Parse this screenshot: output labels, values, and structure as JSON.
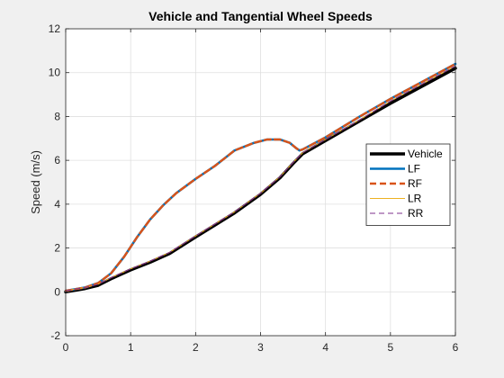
{
  "chart_data": {
    "type": "line",
    "title": "Vehicle and Tangential Wheel Speeds",
    "xlabel": "",
    "ylabel": "Speed (m/s)",
    "xlim": [
      0,
      6
    ],
    "ylim": [
      -2,
      12
    ],
    "xticks": [
      0,
      1,
      2,
      3,
      4,
      5,
      6
    ],
    "yticks": [
      -2,
      0,
      2,
      4,
      6,
      8,
      10,
      12
    ],
    "grid": true,
    "legend_position": "right",
    "series": [
      {
        "name": "Vehicle",
        "color": "#000000",
        "style": "solid",
        "x": [
          0,
          0.3,
          0.5,
          0.7,
          1.0,
          1.3,
          1.6,
          2.0,
          2.3,
          2.6,
          3.0,
          3.3,
          3.5,
          3.65,
          4.0,
          4.5,
          5.0,
          5.5,
          6.0
        ],
        "y": [
          0.0,
          0.15,
          0.3,
          0.6,
          1.0,
          1.35,
          1.75,
          2.5,
          3.05,
          3.6,
          4.45,
          5.2,
          5.85,
          6.3,
          6.9,
          7.75,
          8.6,
          9.4,
          10.2
        ]
      },
      {
        "name": "LF",
        "color": "#0072bd",
        "style": "solid",
        "x": [
          0,
          0.3,
          0.5,
          0.7,
          0.9,
          1.1,
          1.3,
          1.5,
          1.7,
          2.0,
          2.3,
          2.6,
          2.9,
          3.1,
          3.3,
          3.45,
          3.55,
          3.6,
          3.65,
          4.0,
          4.5,
          5.0,
          5.5,
          6.0
        ],
        "y": [
          0.05,
          0.2,
          0.4,
          0.85,
          1.6,
          2.5,
          3.3,
          3.95,
          4.5,
          5.15,
          5.75,
          6.45,
          6.8,
          6.95,
          6.95,
          6.8,
          6.55,
          6.45,
          6.5,
          7.05,
          7.95,
          8.8,
          9.6,
          10.4
        ]
      },
      {
        "name": "RF",
        "color": "#d95319",
        "style": "dashed",
        "x": [
          0,
          0.3,
          0.5,
          0.7,
          0.9,
          1.1,
          1.3,
          1.5,
          1.7,
          2.0,
          2.3,
          2.6,
          2.9,
          3.1,
          3.3,
          3.45,
          3.55,
          3.6,
          3.65,
          4.0,
          4.5,
          5.0,
          5.5,
          6.0
        ],
        "y": [
          0.05,
          0.2,
          0.4,
          0.85,
          1.6,
          2.5,
          3.3,
          3.95,
          4.5,
          5.15,
          5.75,
          6.45,
          6.8,
          6.95,
          6.95,
          6.8,
          6.55,
          6.45,
          6.5,
          7.05,
          7.95,
          8.8,
          9.6,
          10.4
        ]
      },
      {
        "name": "LR",
        "color": "#edb120",
        "style": "solid",
        "x": [
          0,
          0.3,
          0.5,
          0.7,
          1.0,
          1.3,
          1.6,
          2.0,
          2.3,
          2.6,
          3.0,
          3.3,
          3.5,
          3.65,
          4.0,
          4.5,
          5.0,
          5.5,
          6.0
        ],
        "y": [
          0.05,
          0.2,
          0.35,
          0.65,
          1.05,
          1.4,
          1.8,
          2.55,
          3.1,
          3.65,
          4.5,
          5.25,
          5.9,
          6.35,
          6.95,
          7.8,
          8.7,
          9.5,
          10.3
        ]
      },
      {
        "name": "RR",
        "color": "#7e2f8e",
        "style": "dashed",
        "x": [
          0,
          0.3,
          0.5,
          0.7,
          1.0,
          1.3,
          1.6,
          2.0,
          2.3,
          2.6,
          3.0,
          3.3,
          3.5,
          3.65,
          4.0,
          4.5,
          5.0,
          5.5,
          6.0
        ],
        "y": [
          0.05,
          0.2,
          0.35,
          0.65,
          1.05,
          1.4,
          1.8,
          2.55,
          3.1,
          3.65,
          4.5,
          5.25,
          5.9,
          6.35,
          6.95,
          7.8,
          8.7,
          9.5,
          10.3
        ]
      }
    ]
  }
}
